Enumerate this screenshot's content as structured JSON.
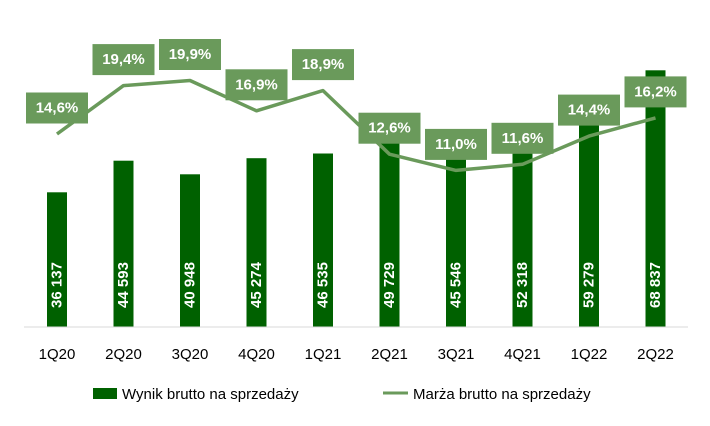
{
  "chart_data": {
    "type": "bar",
    "categories": [
      "1Q20",
      "2Q20",
      "3Q20",
      "4Q20",
      "1Q21",
      "2Q21",
      "3Q21",
      "4Q21",
      "1Q22",
      "2Q22"
    ],
    "series": [
      {
        "name": "Wynik brutto na sprzedaży",
        "type": "bar",
        "values": [
          36137,
          44593,
          40948,
          45274,
          46535,
          49729,
          45546,
          52318,
          59279,
          68837
        ],
        "labels": [
          "36 137",
          "44 593",
          "40 948",
          "45 274",
          "46 535",
          "49 729",
          "45 546",
          "52 318",
          "59 279",
          "68 837"
        ],
        "color": "#006100"
      },
      {
        "name": "Marża brutto na sprzedaży",
        "type": "line",
        "values": [
          14.6,
          19.4,
          19.9,
          16.9,
          18.9,
          12.6,
          11.0,
          11.6,
          14.4,
          16.2
        ],
        "labels": [
          "14,6%",
          "19,4%",
          "19,9%",
          "16,9%",
          "18,9%",
          "12,6%",
          "11,0%",
          "11,6%",
          "14,4%",
          "16,2%"
        ],
        "color": "#6a9a5b"
      }
    ],
    "ylim_bars": [
      0,
      70000
    ],
    "ylim_line": [
      0,
      21
    ],
    "legend": "bottom",
    "grid": false
  }
}
